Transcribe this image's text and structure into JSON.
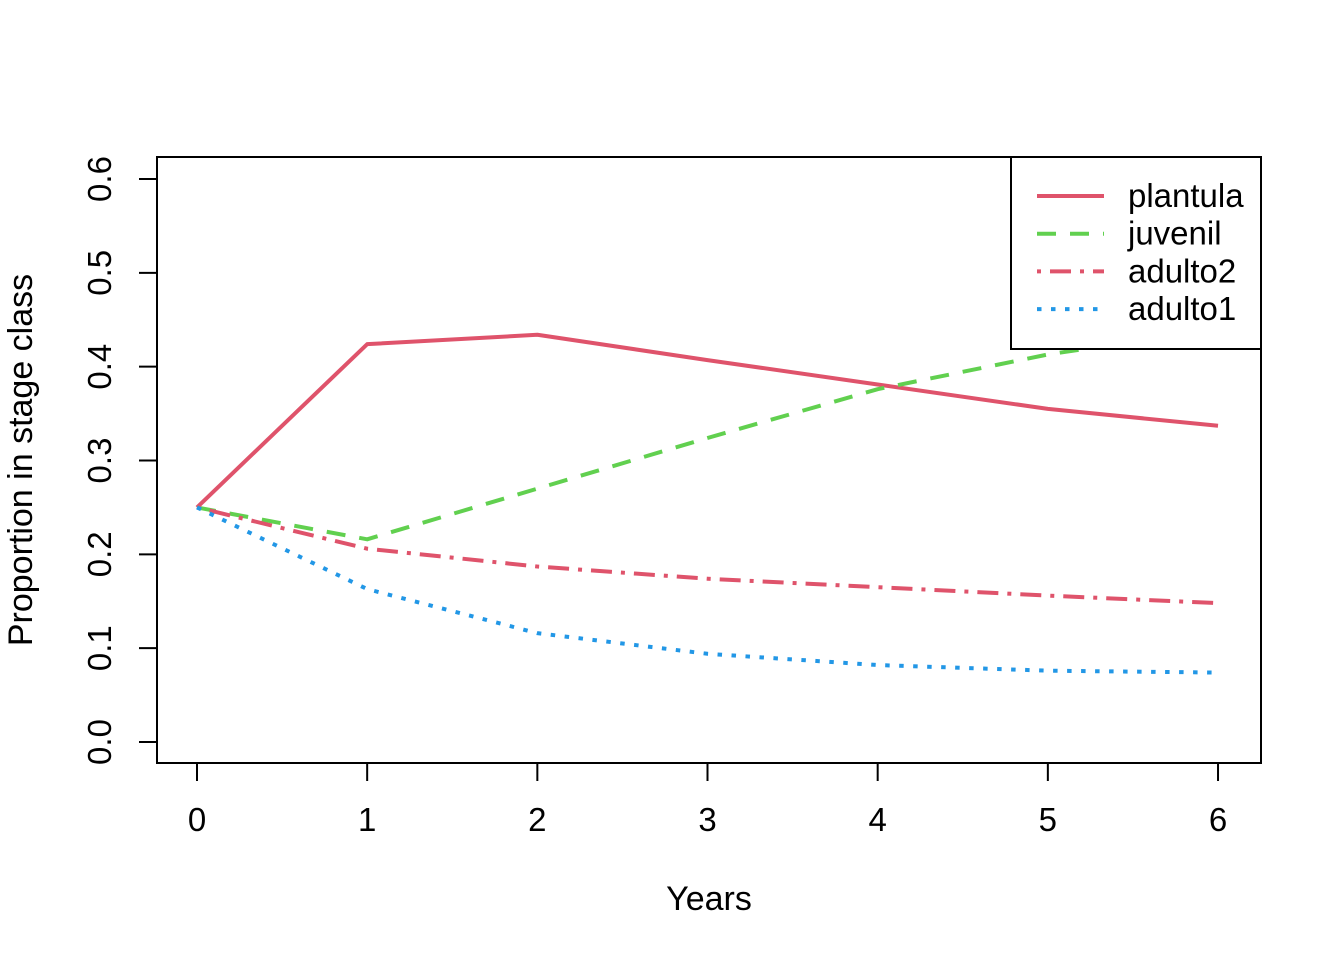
{
  "chart_data": {
    "type": "line",
    "title": "",
    "xlabel": "Years",
    "ylabel": "Proportion in stage class",
    "x": [
      0,
      1,
      2,
      3,
      4,
      5,
      6
    ],
    "xlim": [
      -0.24,
      6.24
    ],
    "ylim": [
      -0.024,
      0.624
    ],
    "grid": false,
    "legend_position": "topright",
    "x_ticks": {
      "values": [
        0,
        1,
        2,
        3,
        4,
        5,
        6
      ],
      "labels": [
        "0",
        "1",
        "2",
        "3",
        "4",
        "5",
        "6"
      ]
    },
    "y_ticks": {
      "values": [
        0,
        0.1,
        0.2,
        0.3,
        0.4,
        0.5,
        0.6
      ],
      "labels": [
        "0.0",
        "0.1",
        "0.2",
        "0.3",
        "0.4",
        "0.5",
        "0.6"
      ]
    },
    "axis_color": "#000000",
    "background": "#FFFFFF",
    "series": [
      {
        "name": "plantula",
        "color": "#DF536B",
        "linetype": "solid",
        "values": [
          0.25,
          0.424,
          0.434,
          0.407,
          0.381,
          0.355,
          0.337
        ]
      },
      {
        "name": "juvenil",
        "color": "#61D04F",
        "linetype": "dashed",
        "values": [
          0.25,
          0.216,
          0.27,
          0.324,
          0.376,
          0.413,
          0.44
        ]
      },
      {
        "name": "adulto2",
        "color": "#DF536B",
        "linetype": "dashdot",
        "values": [
          0.25,
          0.206,
          0.187,
          0.174,
          0.165,
          0.156,
          0.148
        ]
      },
      {
        "name": "adulto1",
        "color": "#2297E6",
        "linetype": "dotted",
        "values": [
          0.25,
          0.163,
          0.116,
          0.094,
          0.082,
          0.076,
          0.074
        ]
      }
    ]
  }
}
